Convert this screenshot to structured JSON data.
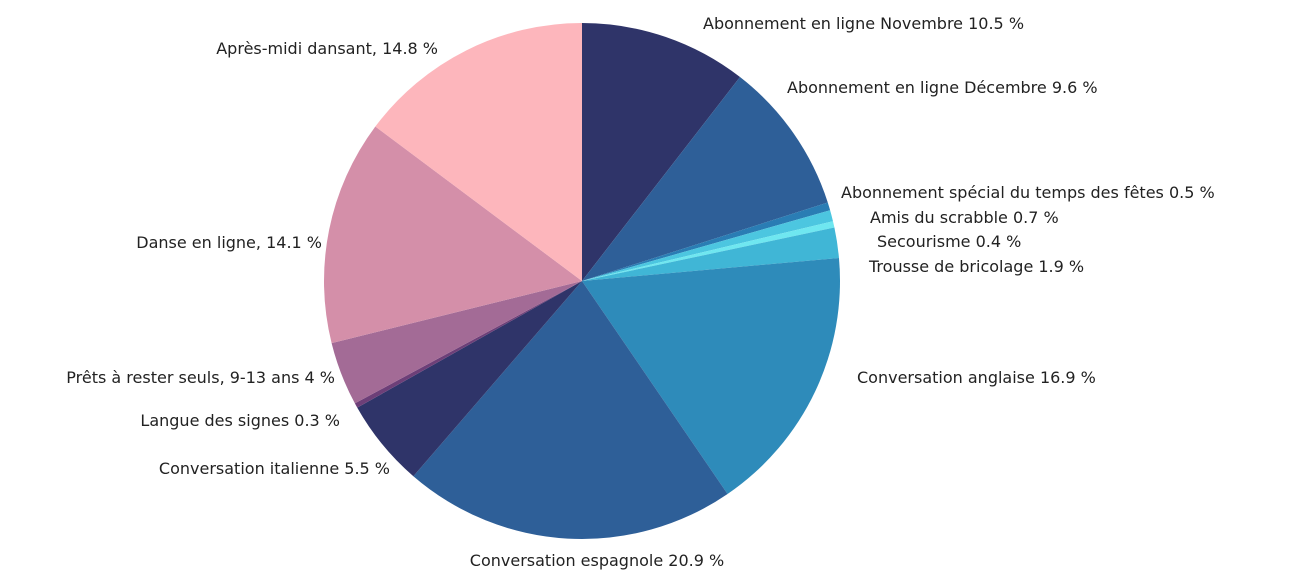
{
  "chart_data": {
    "type": "pie",
    "categories": [
      "Abonnement en ligne Novembre",
      "Abonnement en ligne Décembre",
      "Abonnement spécial du temps des fêtes ",
      "Amis du scrabble",
      "Secourisme",
      "Trousse de bricolage",
      "Conversation anglaise",
      "Conversation espagnole",
      "Conversation italienne",
      "Langue des signes",
      "Prêts à rester seuls, 9-13 ans",
      "Danse en ligne,",
      "Après-midi dansant,"
    ],
    "values": [
      10.5,
      9.6,
      0.5,
      0.7,
      0.4,
      1.9,
      16.9,
      20.9,
      5.5,
      0.3,
      4,
      14.1,
      14.8
    ],
    "value_labels": [
      "10.5 %",
      "9.6 %",
      "0.5 %",
      "0.7 %",
      "0.4 %",
      "1.9 %",
      "16.9 %",
      "20.9 %",
      "5.5 %",
      "0.3 %",
      "4 %",
      "14.1 %",
      "14.8 %"
    ],
    "colors": [
      "#2f3469",
      "#2e5f98",
      "#2a7db4",
      "#4cc6e0",
      "#6fe7f0",
      "#40b6d6",
      "#2e8bba",
      "#2e5f98",
      "#2f3469",
      "#6d3f78",
      "#a36b96",
      "#d48fa9",
      "#fdb6bc"
    ]
  }
}
